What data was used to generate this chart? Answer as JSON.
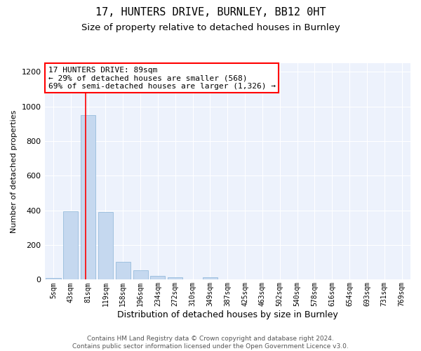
{
  "title_line1": "17, HUNTERS DRIVE, BURNLEY, BB12 0HT",
  "title_line2": "Size of property relative to detached houses in Burnley",
  "xlabel": "Distribution of detached houses by size in Burnley",
  "ylabel": "Number of detached properties",
  "bar_color": "#c5d8ef",
  "bar_edge_color": "#8ab4d8",
  "background_color": "#edf2fc",
  "grid_color": "white",
  "annotation_text": "17 HUNTERS DRIVE: 89sqm\n← 29% of detached houses are smaller (568)\n69% of semi-detached houses are larger (1,326) →",
  "vline_color": "red",
  "box_color": "red",
  "categories": [
    "5sqm",
    "43sqm",
    "81sqm",
    "119sqm",
    "158sqm",
    "196sqm",
    "234sqm",
    "272sqm",
    "310sqm",
    "349sqm",
    "387sqm",
    "425sqm",
    "463sqm",
    "502sqm",
    "540sqm",
    "578sqm",
    "616sqm",
    "654sqm",
    "693sqm",
    "731sqm",
    "769sqm"
  ],
  "values": [
    10,
    395,
    950,
    390,
    105,
    55,
    22,
    12,
    0,
    12,
    0,
    0,
    0,
    0,
    0,
    0,
    0,
    0,
    0,
    0,
    0
  ],
  "ylim": [
    0,
    1250
  ],
  "yticks": [
    0,
    200,
    400,
    600,
    800,
    1000,
    1200
  ],
  "footnote": "Contains HM Land Registry data © Crown copyright and database right 2024.\nContains public sector information licensed under the Open Government Licence v3.0.",
  "title_fontsize": 11,
  "subtitle_fontsize": 9.5,
  "annotation_fontsize": 8,
  "footnote_fontsize": 6.5,
  "ylabel_fontsize": 8,
  "xlabel_fontsize": 9,
  "tick_fontsize": 7
}
